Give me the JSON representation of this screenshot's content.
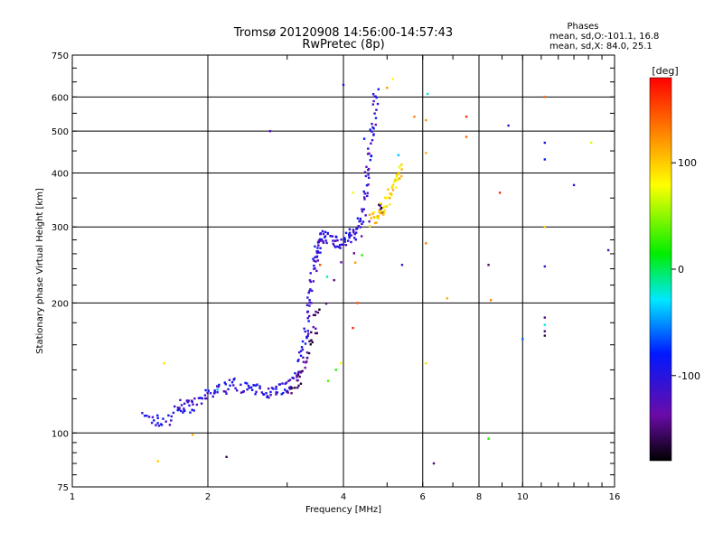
{
  "chart_data": {
    "type": "scatter",
    "title": "Tromsø 20120908 14:56:00-14:57:43",
    "subtitle": "RwPretec (8p)",
    "xlabel": "Frequency [MHz]",
    "ylabel": "Stationary phase Virtual Height [km]",
    "x_scale": "log",
    "y_scale": "log",
    "xlim": [
      1,
      16
    ],
    "ylim": [
      75,
      750
    ],
    "grid": true,
    "x_ticks": [
      {
        "value": 1,
        "label": "1"
      },
      {
        "value": 2,
        "label": "2"
      },
      {
        "value": 4,
        "label": "4"
      },
      {
        "value": 6,
        "label": "6"
      },
      {
        "value": 8,
        "label": "8"
      },
      {
        "value": 10,
        "label": "10"
      },
      {
        "value": 16,
        "label": "16"
      }
    ],
    "y_ticks": [
      {
        "value": 75,
        "label": "75"
      },
      {
        "value": 100,
        "label": "100"
      },
      {
        "value": 200,
        "label": "200"
      },
      {
        "value": 300,
        "label": "300"
      },
      {
        "value": 400,
        "label": "400"
      },
      {
        "value": 500,
        "label": "500"
      },
      {
        "value": 600,
        "label": "600"
      },
      {
        "value": 750,
        "label": "750"
      }
    ],
    "legend": {
      "heading": "Phases",
      "line1": "mean, sd,O:-101.1, 16.8",
      "line2": "mean, sd,X:  84.0, 25.1"
    },
    "colorbar": {
      "label": "[deg]",
      "range": [
        -180,
        180
      ],
      "ticks": [
        {
          "value": 100,
          "label": "100"
        },
        {
          "value": 0,
          "label": "0"
        },
        {
          "value": -100,
          "label": "-100"
        }
      ]
    },
    "traces": [
      {
        "phase": -105,
        "points": [
          [
            1.45,
            108
          ],
          [
            1.52,
            107
          ],
          [
            1.6,
            106
          ],
          [
            1.7,
            112
          ],
          [
            1.75,
            115
          ],
          [
            1.8,
            116
          ],
          [
            1.85,
            115
          ],
          [
            1.92,
            118
          ],
          [
            2.0,
            122
          ],
          [
            2.1,
            126
          ],
          [
            2.2,
            128
          ],
          [
            2.3,
            130
          ],
          [
            2.4,
            128
          ],
          [
            2.5,
            126
          ],
          [
            2.6,
            125
          ],
          [
            2.7,
            125
          ],
          [
            2.8,
            126
          ],
          [
            2.9,
            127
          ],
          [
            3.0,
            128
          ],
          [
            3.1,
            132
          ],
          [
            3.2,
            140
          ],
          [
            3.25,
            152
          ],
          [
            3.3,
            168
          ],
          [
            3.33,
            185
          ],
          [
            3.36,
            205
          ],
          [
            3.4,
            228
          ],
          [
            3.44,
            245
          ],
          [
            3.48,
            258
          ],
          [
            3.52,
            268
          ],
          [
            3.55,
            282
          ],
          [
            3.6,
            284
          ],
          [
            3.7,
            283
          ],
          [
            3.8,
            279
          ],
          [
            3.9,
            277
          ],
          [
            4.0,
            278
          ],
          [
            4.1,
            282
          ],
          [
            4.2,
            288
          ],
          [
            4.3,
            296
          ],
          [
            4.4,
            315
          ],
          [
            4.45,
            340
          ],
          [
            4.5,
            375
          ],
          [
            4.55,
            420
          ],
          [
            4.6,
            470
          ],
          [
            4.65,
            520
          ],
          [
            4.7,
            580
          ],
          [
            4.75,
            610
          ]
        ]
      },
      {
        "phase": -150,
        "points": [
          [
            3.05,
            126
          ],
          [
            3.15,
            132
          ],
          [
            3.25,
            140
          ],
          [
            3.35,
            155
          ],
          [
            3.45,
            175
          ],
          [
            3.5,
            190
          ],
          [
            4.8,
            330
          ],
          [
            4.9,
            335
          ]
        ]
      },
      {
        "phase": 95,
        "points": [
          [
            4.6,
            310
          ],
          [
            4.7,
            315
          ],
          [
            4.8,
            322
          ],
          [
            4.9,
            332
          ],
          [
            5.0,
            345
          ],
          [
            5.1,
            360
          ],
          [
            5.2,
            380
          ],
          [
            5.3,
            400
          ],
          [
            5.35,
            415
          ]
        ]
      }
    ],
    "points": [
      {
        "x": 1.75,
        "y": 116,
        "phase": -100
      },
      {
        "x": 2.1,
        "y": 126,
        "phase": -40
      },
      {
        "x": 3.55,
        "y": 245,
        "phase": 150
      },
      {
        "x": 3.68,
        "y": 230,
        "phase": -15
      },
      {
        "x": 3.95,
        "y": 145,
        "phase": 80
      },
      {
        "x": 3.7,
        "y": 132,
        "phase": 30
      },
      {
        "x": 3.85,
        "y": 140,
        "phase": 20
      },
      {
        "x": 4.2,
        "y": 360,
        "phase": 75
      },
      {
        "x": 4.25,
        "y": 248,
        "phase": 120
      },
      {
        "x": 4.4,
        "y": 258,
        "phase": 20
      },
      {
        "x": 4.45,
        "y": 480,
        "phase": -80
      },
      {
        "x": 4.0,
        "y": 640,
        "phase": -100
      },
      {
        "x": 4.3,
        "y": 200,
        "phase": 150
      },
      {
        "x": 4.2,
        "y": 175,
        "phase": 165
      },
      {
        "x": 5.0,
        "y": 630,
        "phase": 120
      },
      {
        "x": 5.15,
        "y": 660,
        "phase": 80
      },
      {
        "x": 5.3,
        "y": 440,
        "phase": -40
      },
      {
        "x": 5.4,
        "y": 245,
        "phase": -110
      },
      {
        "x": 5.75,
        "y": 540,
        "phase": 130
      },
      {
        "x": 6.1,
        "y": 530,
        "phase": 120
      },
      {
        "x": 6.1,
        "y": 445,
        "phase": 110
      },
      {
        "x": 6.1,
        "y": 275,
        "phase": 130
      },
      {
        "x": 6.1,
        "y": 145,
        "phase": 90
      },
      {
        "x": 6.15,
        "y": 610,
        "phase": -20
      },
      {
        "x": 6.35,
        "y": 85,
        "phase": -150
      },
      {
        "x": 6.8,
        "y": 205,
        "phase": 110
      },
      {
        "x": 7.5,
        "y": 540,
        "phase": 160
      },
      {
        "x": 7.5,
        "y": 485,
        "phase": 140
      },
      {
        "x": 8.4,
        "y": 245,
        "phase": -150
      },
      {
        "x": 8.5,
        "y": 203,
        "phase": 130
      },
      {
        "x": 8.4,
        "y": 97,
        "phase": 20
      },
      {
        "x": 8.9,
        "y": 360,
        "phase": 165
      },
      {
        "x": 9.3,
        "y": 515,
        "phase": -110
      },
      {
        "x": 10.0,
        "y": 165,
        "phase": -60
      },
      {
        "x": 11.2,
        "y": 600,
        "phase": 145
      },
      {
        "x": 11.2,
        "y": 470,
        "phase": -95
      },
      {
        "x": 11.2,
        "y": 430,
        "phase": -80
      },
      {
        "x": 11.2,
        "y": 300,
        "phase": 100
      },
      {
        "x": 11.2,
        "y": 243,
        "phase": -110
      },
      {
        "x": 11.2,
        "y": 185,
        "phase": -145
      },
      {
        "x": 11.2,
        "y": 178,
        "phase": -25
      },
      {
        "x": 11.2,
        "y": 172,
        "phase": -150
      },
      {
        "x": 11.2,
        "y": 168,
        "phase": -160
      },
      {
        "x": 13.0,
        "y": 375,
        "phase": -100
      },
      {
        "x": 14.2,
        "y": 470,
        "phase": 70
      },
      {
        "x": 15.5,
        "y": 265,
        "phase": -120
      },
      {
        "x": 2.75,
        "y": 500,
        "phase": -120
      },
      {
        "x": 1.6,
        "y": 145,
        "phase": 90
      },
      {
        "x": 1.85,
        "y": 99,
        "phase": 110
      },
      {
        "x": 1.55,
        "y": 86,
        "phase": 100
      },
      {
        "x": 2.2,
        "y": 88,
        "phase": -160
      }
    ]
  }
}
